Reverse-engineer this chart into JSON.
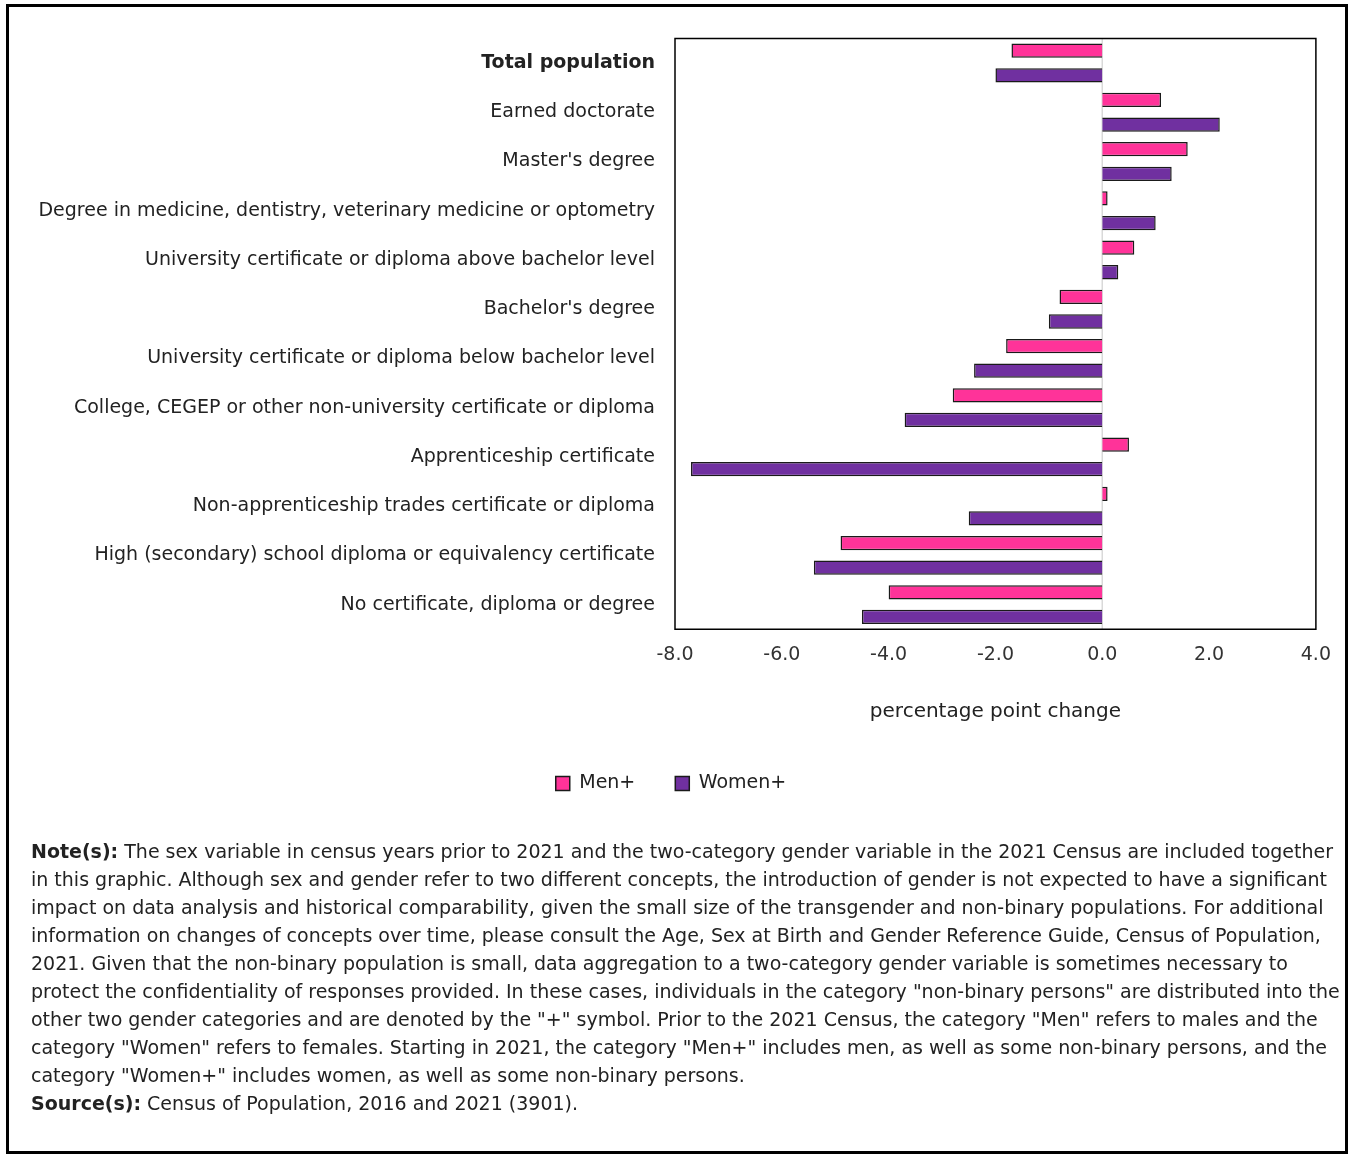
{
  "chart_data": {
    "type": "bar",
    "orientation": "horizontal",
    "categories": [
      "Total population",
      "Earned doctorate",
      "Master's degree",
      "Degree in medicine, dentistry, veterinary medicine or optometry",
      "University certificate or diploma above bachelor level",
      "Bachelor's degree",
      "University certificate or diploma below bachelor level",
      "College, CEGEP or other non-university certificate or diploma",
      "Apprenticeship certificate",
      "Non-apprenticeship trades certificate or diploma",
      "High (secondary) school diploma or equivalency certificate",
      "No certificate, diploma or degree"
    ],
    "series": [
      {
        "name": "Men+",
        "color": "#ff3399",
        "values": [
          -1.7,
          1.1,
          1.6,
          0.1,
          0.6,
          -0.8,
          -1.8,
          -2.8,
          0.5,
          0.1,
          -4.9,
          -4.0
        ]
      },
      {
        "name": "Women+",
        "color": "#7030a0",
        "values": [
          -2.0,
          2.2,
          1.3,
          1.0,
          0.3,
          -1.0,
          -2.4,
          -3.7,
          -7.7,
          -2.5,
          -5.4,
          -4.5
        ]
      }
    ],
    "xlabel": "percentage point change",
    "xlim": [
      -8,
      4
    ],
    "xticks": [
      {
        "value": -8,
        "label": "-8.0"
      },
      {
        "value": -6,
        "label": "-6.0"
      },
      {
        "value": -4,
        "label": "-4.0"
      },
      {
        "value": -2,
        "label": "-2.0"
      },
      {
        "value": 0,
        "label": "0.0"
      },
      {
        "value": 2,
        "label": "2.0"
      },
      {
        "value": 4,
        "label": "4.0"
      }
    ],
    "ref_lines": [
      {
        "axis": "x",
        "value": 0,
        "color": "#d9d9d9"
      }
    ],
    "grid": false,
    "legend": "bottom",
    "annotations": [
      "Note(s): The sex variable in census years prior to 2021 and the two-category gender variable in the 2021 Census are included together in this graphic. Although sex and gender refer to two different concepts, the introduction of gender is not expected to have a significant impact on data analysis and historical comparability, given the small size of the transgender and non-binary populations. For additional information on changes of concepts over time, please consult the Age, Sex at Birth and Gender Reference Guide, Census of Population, 2021. Given that the non-binary population is small, data aggregation to a two-category gender variable is sometimes necessary to protect the confidentiality of responses provided. In these cases, individuals in the category \"non-binary persons\" are distributed into the other two gender categories and are denoted by the \"+\" symbol. Prior to the 2021 Census, the category \"Men\" refers to males and the category \"Women\" refers to females. Starting in 2021, the category \"Men+\" includes men, as well as some non-binary persons, and the category \"Women+\" includes women, as well as some non-binary persons.",
      "Source(s): Census of Population, 2016 and 2021 (3901)."
    ]
  }
}
